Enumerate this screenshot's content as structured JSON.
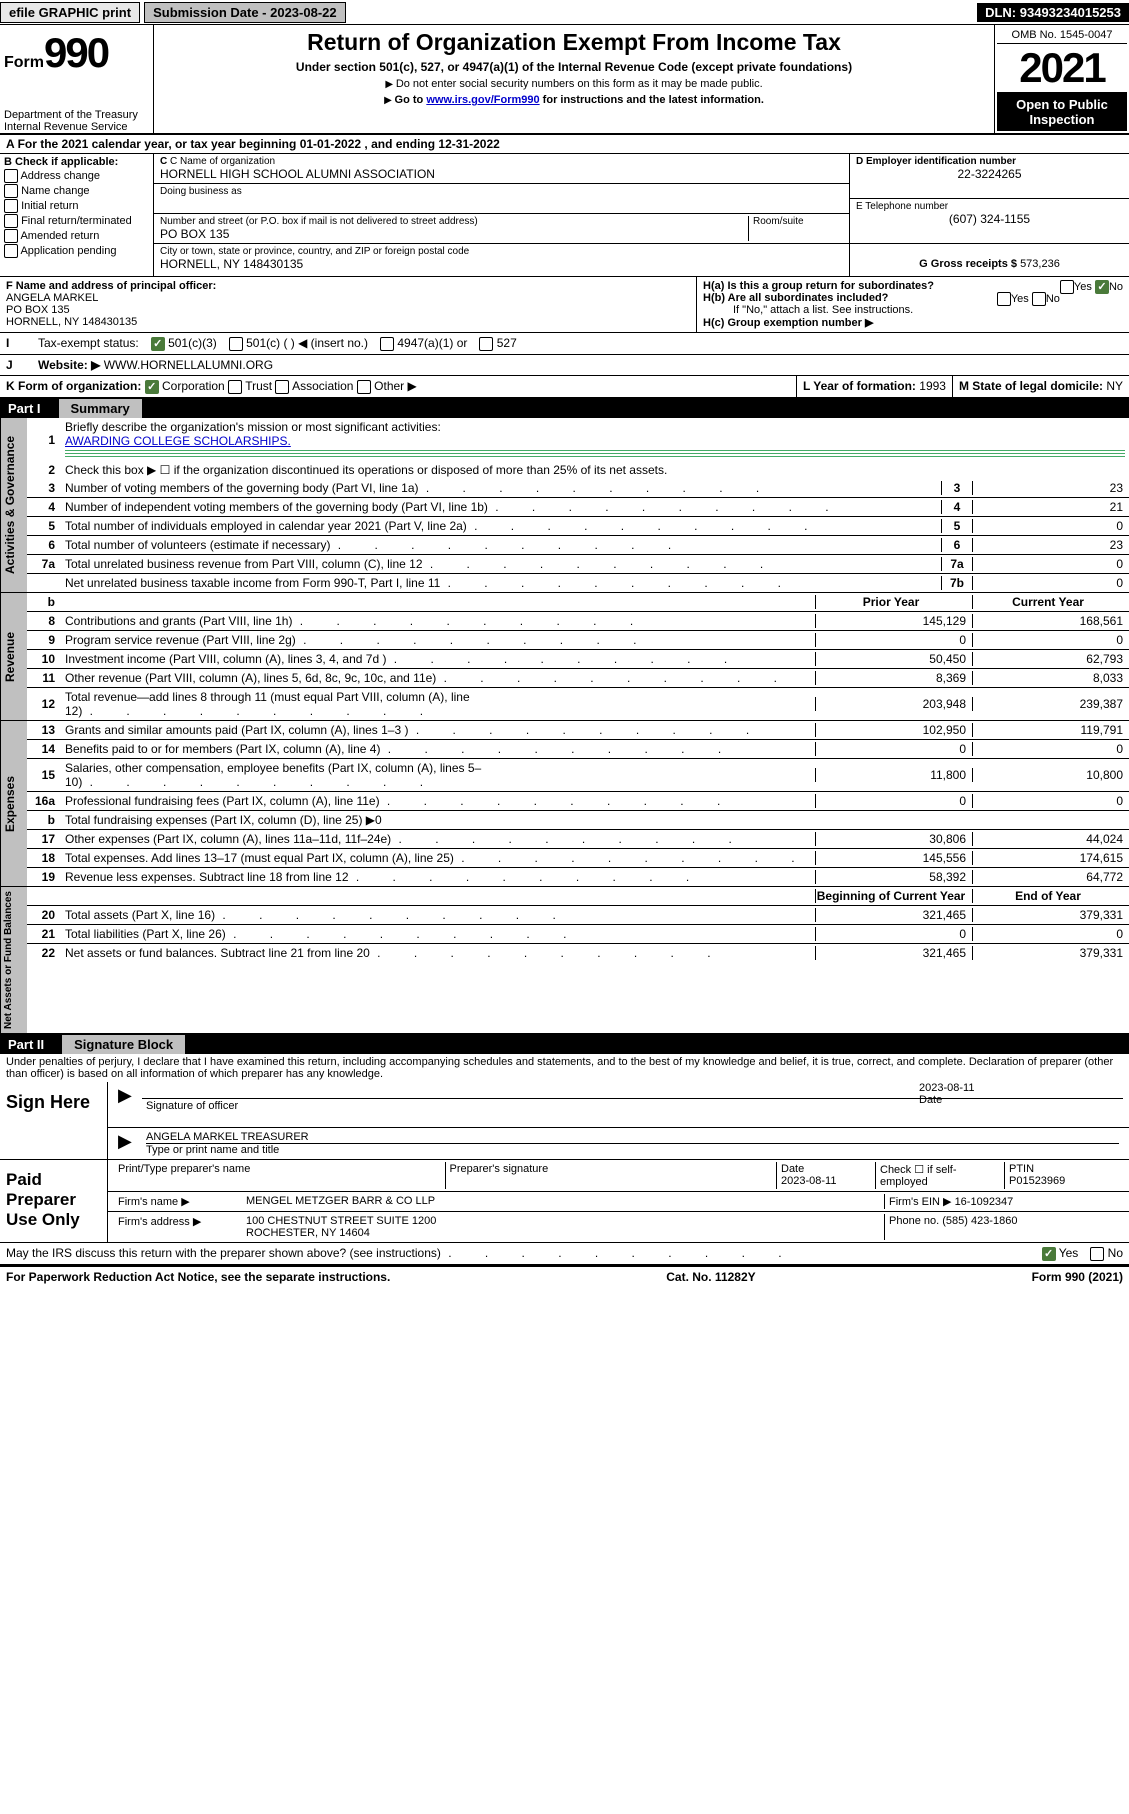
{
  "topbar": {
    "efile": "efile GRAPHIC print",
    "subdate_label": "Submission Date - ",
    "subdate": "2023-08-22",
    "dln_label": "DLN: ",
    "dln": "93493234015253"
  },
  "header": {
    "form_prefix": "Form",
    "form_num": "990",
    "title": "Return of Organization Exempt From Income Tax",
    "subtitle": "Under section 501(c), 527, or 4947(a)(1) of the Internal Revenue Code (except private foundations)",
    "note1": "Do not enter social security numbers on this form as it may be made public.",
    "note2_pre": "Go to ",
    "note2_link": "www.irs.gov/Form990",
    "note2_post": " for instructions and the latest information.",
    "dept": "Department of the Treasury\nInternal Revenue Service",
    "omb": "OMB No. 1545-0047",
    "year": "2021",
    "open": "Open to Public Inspection"
  },
  "rowA": {
    "text_pre": "For the 2021 calendar year, or tax year beginning ",
    "begin": "01-01-2022",
    "mid": " , and ending ",
    "end": "12-31-2022"
  },
  "sectionB": {
    "b_label": "B Check if applicable:",
    "checks": [
      "Address change",
      "Name change",
      "Initial return",
      "Final return/terminated",
      "Amended return",
      "Application pending"
    ],
    "c_label": "C Name of organization",
    "org_name": "HORNELL HIGH SCHOOL ALUMNI ASSOCIATION",
    "dba_label": "Doing business as",
    "addr_label": "Number and street (or P.O. box if mail is not delivered to street address)",
    "room_label": "Room/suite",
    "addr": "PO BOX 135",
    "city_label": "City or town, state or province, country, and ZIP or foreign postal code",
    "city": "HORNELL, NY  148430135",
    "d_label": "D Employer identification number",
    "ein": "22-3224265",
    "e_label": "E Telephone number",
    "phone": "(607) 324-1155",
    "g_label": "G Gross receipts $ ",
    "gross": "573,236"
  },
  "sectionF": {
    "f_label": "F Name and address of principal officer:",
    "officer": "ANGELA MARKEL",
    "addr1": "PO BOX 135",
    "addr2": "HORNELL, NY  148430135",
    "ha": "H(a)  Is this a group return for subordinates?",
    "hb": "H(b)  Are all subordinates included?",
    "hb_note": "If \"No,\" attach a list. See instructions.",
    "hc": "H(c)  Group exemption number ▶",
    "yes": "Yes",
    "no": "No"
  },
  "sectionI": {
    "label": "Tax-exempt status:",
    "opts": [
      "501(c)(3)",
      "501(c) (  ) ◀ (insert no.)",
      "4947(a)(1) or",
      "527"
    ]
  },
  "sectionJ": {
    "label": "Website: ▶",
    "url": "WWW.HORNELLALUMNI.ORG"
  },
  "sectionK": {
    "label": "K Form of organization:",
    "opts": [
      "Corporation",
      "Trust",
      "Association",
      "Other ▶"
    ],
    "L": "L Year of formation: ",
    "Lv": "1993",
    "M": "M State of legal domicile: ",
    "Mv": "NY"
  },
  "partI": {
    "head": "Part I",
    "title": "Summary",
    "line1": "Briefly describe the organization's mission or most significant activities:",
    "mission": "AWARDING COLLEGE SCHOLARSHIPS.",
    "line2": "Check this box ▶ ☐  if the organization discontinued its operations or disposed of more than 25% of its net assets.",
    "tabs": {
      "gov": "Activities & Governance",
      "rev": "Revenue",
      "exp": "Expenses",
      "net": "Net Assets or Fund Balances"
    },
    "gov_lines": [
      {
        "n": "3",
        "d": "Number of voting members of the governing body (Part VI, line 1a)",
        "r": "3",
        "v": "23"
      },
      {
        "n": "4",
        "d": "Number of independent voting members of the governing body (Part VI, line 1b)",
        "r": "4",
        "v": "21"
      },
      {
        "n": "5",
        "d": "Total number of individuals employed in calendar year 2021 (Part V, line 2a)",
        "r": "5",
        "v": "0"
      },
      {
        "n": "6",
        "d": "Total number of volunteers (estimate if necessary)",
        "r": "6",
        "v": "23"
      },
      {
        "n": "7a",
        "d": "Total unrelated business revenue from Part VIII, column (C), line 12",
        "r": "7a",
        "v": "0"
      },
      {
        "n": "",
        "d": "Net unrelated business taxable income from Form 990-T, Part I, line 11",
        "r": "7b",
        "v": "0"
      }
    ],
    "col_hdr": {
      "b": "b",
      "prior": "Prior Year",
      "current": "Current Year"
    },
    "rev_lines": [
      {
        "n": "8",
        "d": "Contributions and grants (Part VIII, line 1h)",
        "p": "145,129",
        "c": "168,561"
      },
      {
        "n": "9",
        "d": "Program service revenue (Part VIII, line 2g)",
        "p": "0",
        "c": "0"
      },
      {
        "n": "10",
        "d": "Investment income (Part VIII, column (A), lines 3, 4, and 7d )",
        "p": "50,450",
        "c": "62,793"
      },
      {
        "n": "11",
        "d": "Other revenue (Part VIII, column (A), lines 5, 6d, 8c, 9c, 10c, and 11e)",
        "p": "8,369",
        "c": "8,033"
      },
      {
        "n": "12",
        "d": "Total revenue—add lines 8 through 11 (must equal Part VIII, column (A), line 12)",
        "p": "203,948",
        "c": "239,387"
      }
    ],
    "exp_lines": [
      {
        "n": "13",
        "d": "Grants and similar amounts paid (Part IX, column (A), lines 1–3 )",
        "p": "102,950",
        "c": "119,791"
      },
      {
        "n": "14",
        "d": "Benefits paid to or for members (Part IX, column (A), line 4)",
        "p": "0",
        "c": "0"
      },
      {
        "n": "15",
        "d": "Salaries, other compensation, employee benefits (Part IX, column (A), lines 5–10)",
        "p": "11,800",
        "c": "10,800"
      },
      {
        "n": "16a",
        "d": "Professional fundraising fees (Part IX, column (A), line 11e)",
        "p": "0",
        "c": "0"
      },
      {
        "n": "b",
        "d": "Total fundraising expenses (Part IX, column (D), line 25) ▶0",
        "p": "",
        "c": "",
        "gray": true
      },
      {
        "n": "17",
        "d": "Other expenses (Part IX, column (A), lines 11a–11d, 11f–24e)",
        "p": "30,806",
        "c": "44,024"
      },
      {
        "n": "18",
        "d": "Total expenses. Add lines 13–17 (must equal Part IX, column (A), line 25)",
        "p": "145,556",
        "c": "174,615"
      },
      {
        "n": "19",
        "d": "Revenue less expenses. Subtract line 18 from line 12",
        "p": "58,392",
        "c": "64,772"
      }
    ],
    "net_hdr": {
      "b": "Beginning of Current Year",
      "e": "End of Year"
    },
    "net_lines": [
      {
        "n": "20",
        "d": "Total assets (Part X, line 16)",
        "p": "321,465",
        "c": "379,331"
      },
      {
        "n": "21",
        "d": "Total liabilities (Part X, line 26)",
        "p": "0",
        "c": "0"
      },
      {
        "n": "22",
        "d": "Net assets or fund balances. Subtract line 21 from line 20",
        "p": "321,465",
        "c": "379,331"
      }
    ]
  },
  "partII": {
    "head": "Part II",
    "title": "Signature Block",
    "decl": "Under penalties of perjury, I declare that I have examined this return, including accompanying schedules and statements, and to the best of my knowledge and belief, it is true, correct, and complete. Declaration of preparer (other than officer) is based on all information of which preparer has any knowledge.",
    "sign_here": "Sign Here",
    "sig_officer": "Signature of officer",
    "sig_date": "2023-08-11",
    "date_label": "Date",
    "name_title": "ANGELA MARKEL TREASURER",
    "type_label": "Type or print name and title",
    "paid": "Paid Preparer Use Only",
    "prep_name_label": "Print/Type preparer's name",
    "prep_sig_label": "Preparer's signature",
    "prep_date": "2023-08-11",
    "check_if": "Check ☐ if self-employed",
    "ptin_label": "PTIN",
    "ptin": "P01523969",
    "firm_name_label": "Firm's name    ▶",
    "firm_name": "MENGEL METZGER BARR & CO LLP",
    "firm_ein_label": "Firm's EIN ▶",
    "firm_ein": "16-1092347",
    "firm_addr_label": "Firm's address ▶",
    "firm_addr1": "100 CHESTNUT STREET SUITE 1200",
    "firm_addr2": "ROCHESTER, NY  14604",
    "phone_label": "Phone no. ",
    "phone": "(585) 423-1860",
    "may_irs": "May the IRS discuss this return with the preparer shown above? (see instructions)"
  },
  "footer": {
    "left": "For Paperwork Reduction Act Notice, see the separate instructions.",
    "mid": "Cat. No. 11282Y",
    "right": "Form 990 (2021)"
  }
}
